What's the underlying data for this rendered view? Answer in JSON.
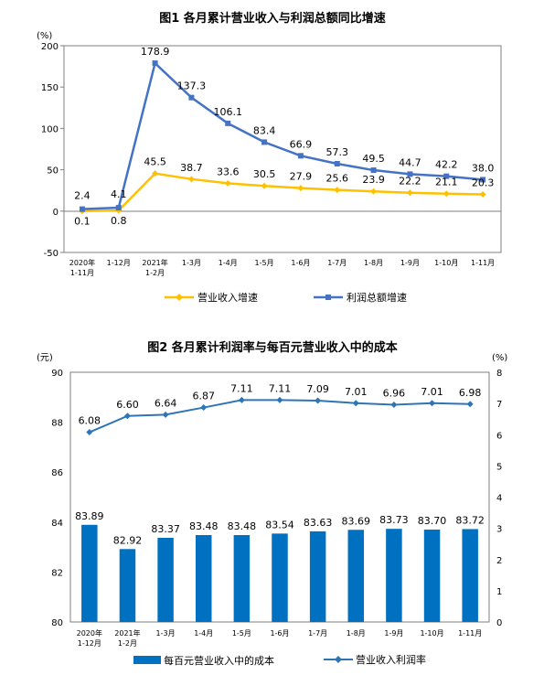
{
  "chart_data": [
    {
      "type": "line",
      "title": "图1 各月累计营业收入与利润总额同比增速",
      "ylabel": "(%)",
      "ylim": [
        -50,
        200
      ],
      "yticks": [
        -50,
        0,
        50,
        100,
        150,
        200
      ],
      "categories": [
        [
          "2020年",
          "1-11月"
        ],
        [
          "1-12月"
        ],
        [
          "2021年",
          "1-2月"
        ],
        [
          "1-3月"
        ],
        [
          "1-4月"
        ],
        [
          "1-5月"
        ],
        [
          "1-6月"
        ],
        [
          "1-7月"
        ],
        [
          "1-8月"
        ],
        [
          "1-9月"
        ],
        [
          "1-10月"
        ],
        [
          "1-11月"
        ]
      ],
      "series": [
        {
          "name": "营业收入增速",
          "color": "#FFC000",
          "values": [
            0.1,
            0.8,
            45.5,
            38.7,
            33.6,
            30.5,
            27.9,
            25.6,
            23.9,
            22.2,
            21.1,
            20.3
          ],
          "labels": [
            "0.1",
            "0.8",
            "45.5",
            "38.7",
            "33.6",
            "30.5",
            "27.9",
            "25.6",
            "23.9",
            "22.2",
            "21.1",
            "20.3"
          ]
        },
        {
          "name": "利润总额增速",
          "color": "#4472C4",
          "values": [
            2.4,
            4.1,
            178.9,
            137.3,
            106.1,
            83.4,
            66.9,
            57.3,
            49.5,
            44.7,
            42.2,
            38.0
          ],
          "labels": [
            "2.4",
            "4.1",
            "178.9",
            "137.3",
            "106.1",
            "83.4",
            "66.9",
            "57.3",
            "49.5",
            "44.7",
            "42.2",
            "38.0"
          ]
        }
      ],
      "grid": false,
      "legend": "bottom"
    },
    {
      "type": "bar",
      "title": "图2 各月累计利润率与每百元营业收入中的成本",
      "ylabel": "(元)",
      "ylim": [
        80,
        90
      ],
      "yticks": [
        80,
        82,
        84,
        86,
        88,
        90
      ],
      "y2label": "(%)",
      "y2lim": [
        0,
        8
      ],
      "y2ticks": [
        0,
        1,
        2,
        3,
        4,
        5,
        6,
        7,
        8
      ],
      "categories": [
        [
          "2020年",
          "1-12月"
        ],
        [
          "2021年",
          "1-2月"
        ],
        [
          "1-3月"
        ],
        [
          "1-4月"
        ],
        [
          "1-5月"
        ],
        [
          "1-6月"
        ],
        [
          "1-7月"
        ],
        [
          "1-8月"
        ],
        [
          "1-9月"
        ],
        [
          "1-10月"
        ],
        [
          "1-11月"
        ]
      ],
      "series": [
        {
          "name": "每百元营业收入中的成本",
          "type": "bar",
          "axis": "left",
          "color": "#0070C0",
          "values": [
            83.89,
            82.92,
            83.37,
            83.48,
            83.48,
            83.54,
            83.63,
            83.69,
            83.73,
            83.7,
            83.72
          ],
          "labels": [
            "83.89",
            "82.92",
            "83.37",
            "83.48",
            "83.48",
            "83.54",
            "83.63",
            "83.69",
            "83.73",
            "83.70",
            "83.72"
          ]
        },
        {
          "name": "营业收入利润率",
          "type": "line",
          "axis": "right",
          "color": "#2E75B6",
          "values": [
            6.08,
            6.6,
            6.64,
            6.87,
            7.11,
            7.11,
            7.09,
            7.01,
            6.96,
            7.01,
            6.98
          ],
          "labels": [
            "6.08",
            "6.60",
            "6.64",
            "6.87",
            "7.11",
            "7.11",
            "7.09",
            "7.01",
            "6.96",
            "7.01",
            "6.98"
          ]
        }
      ],
      "grid": false,
      "legend": "bottom"
    }
  ]
}
